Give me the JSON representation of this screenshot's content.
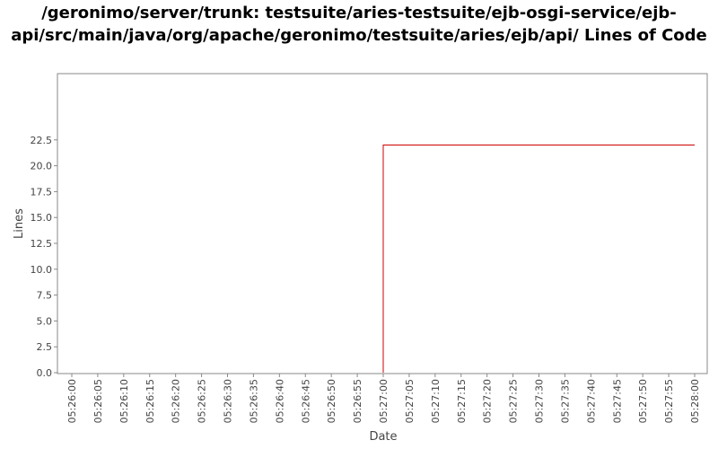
{
  "chart_data": {
    "type": "line",
    "title": "/geronimo/server/trunk: testsuite/aries-testsuite/ejb-osgi-service/ejb-api/src/main/java/org/apache/geronimo/testsuite/aries/ejb/api/ Lines of Code",
    "xlabel": "Date",
    "ylabel": "Lines",
    "x_ticks": [
      "05:26:00",
      "05:26:05",
      "05:26:10",
      "05:26:15",
      "05:26:20",
      "05:26:25",
      "05:26:30",
      "05:26:35",
      "05:26:40",
      "05:26:45",
      "05:26:50",
      "05:26:55",
      "05:27:00",
      "05:27:05",
      "05:27:10",
      "05:27:15",
      "05:27:20",
      "05:27:25",
      "05:27:30",
      "05:27:35",
      "05:27:40",
      "05:27:45",
      "05:27:50",
      "05:27:55",
      "05:28:00"
    ],
    "y_ticks": [
      "0.0",
      "2.5",
      "5.0",
      "7.5",
      "10.0",
      "12.5",
      "15.0",
      "17.5",
      "20.0",
      "22.5"
    ],
    "ylim": [
      0,
      23
    ],
    "grid": false,
    "series": [
      {
        "color": "#cc0000",
        "step": true,
        "x": [
          "05:27:00",
          "05:28:00"
        ],
        "y": [
          22,
          22
        ]
      }
    ]
  }
}
